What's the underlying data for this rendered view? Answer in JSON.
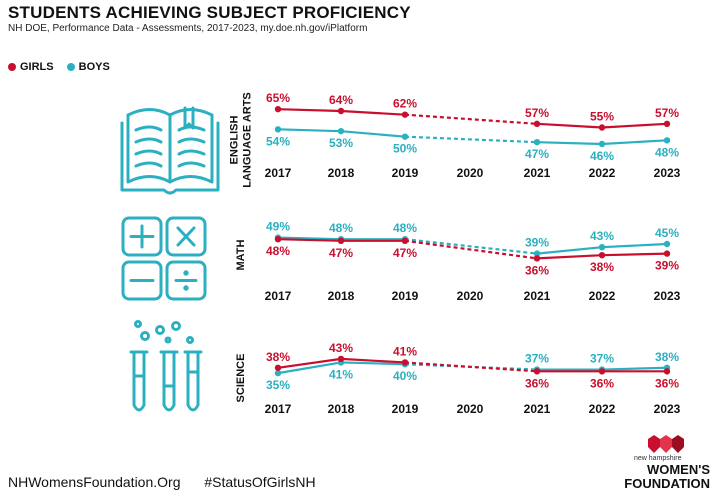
{
  "header": {
    "title": "STUDENTS ACHIEVING SUBJECT PROFICIENCY",
    "subtitle": "NH DOE, Performance Data - Assessments, 2017-2023, my.doe.nh.gov/iPlatform"
  },
  "colors": {
    "girls": "#c8102e",
    "boys": "#2bb0c1",
    "text": "#111111",
    "icon": "#2bb0c1"
  },
  "legend": {
    "girls": "GIRLS",
    "boys": "BOYS"
  },
  "footer": {
    "site": "NHWomensFoundation.Org",
    "hashtag": "#StatusOfGirlsNH"
  },
  "logo": {
    "small_text": "new hampshire",
    "line1": "WOMEN'S",
    "line2": "FOUNDATION"
  },
  "chart_data": [
    {
      "type": "line",
      "title": "ENGLISH LANGUAGE ARTS",
      "ylabel_lines": [
        "ENGLISH",
        "LANGUAGE ARTS"
      ],
      "icon": "open-book-icon",
      "categories": [
        "2017",
        "2018",
        "2019",
        "2020",
        "2021",
        "2022",
        "2023"
      ],
      "ylim": [
        40,
        70
      ],
      "series": [
        {
          "name": "GIRLS",
          "values": [
            65,
            64,
            62,
            null,
            57,
            55,
            57
          ],
          "labels": [
            "65%",
            "64%",
            "62%",
            "",
            "57%",
            "55%",
            "57%"
          ]
        },
        {
          "name": "BOYS",
          "values": [
            54,
            53,
            50,
            null,
            47,
            46,
            48
          ],
          "labels": [
            "54%",
            "53%",
            "50%",
            "",
            "47%",
            "46%",
            "48%"
          ]
        }
      ],
      "note": "2019 to 2021 dashed (no 2020 data)"
    },
    {
      "type": "line",
      "title": "MATH",
      "ylabel_lines": [
        "MATH"
      ],
      "icon": "calculator-symbols-icon",
      "categories": [
        "2017",
        "2018",
        "2019",
        "2020",
        "2021",
        "2022",
        "2023"
      ],
      "ylim": [
        30,
        55
      ],
      "series": [
        {
          "name": "GIRLS",
          "values": [
            48,
            47,
            47,
            null,
            36,
            38,
            39
          ],
          "labels": [
            "48%",
            "47%",
            "47%",
            "",
            "36%",
            "38%",
            "39%"
          ]
        },
        {
          "name": "BOYS",
          "values": [
            49,
            48,
            48,
            null,
            39,
            43,
            45
          ],
          "labels": [
            "49%",
            "48%",
            "48%",
            "",
            "39%",
            "43%",
            "45%"
          ]
        }
      ],
      "note": "2019 to 2021 dashed (no 2020 data)"
    },
    {
      "type": "line",
      "title": "SCIENCE",
      "ylabel_lines": [
        "SCIENCE"
      ],
      "icon": "test-tubes-icon",
      "categories": [
        "2017",
        "2018",
        "2019",
        "2020",
        "2021",
        "2022",
        "2023"
      ],
      "ylim": [
        30,
        48
      ],
      "series": [
        {
          "name": "GIRLS",
          "values": [
            38,
            43,
            41,
            null,
            36,
            36,
            36
          ],
          "labels": [
            "38%",
            "43%",
            "41%",
            "",
            "36%",
            "36%",
            "36%"
          ]
        },
        {
          "name": "BOYS",
          "values": [
            35,
            41,
            40,
            null,
            37,
            37,
            38
          ],
          "labels": [
            "35%",
            "41%",
            "40%",
            "",
            "37%",
            "37%",
            "38%"
          ]
        }
      ],
      "note": "2019 to 2021 dashed (no 2020 data)"
    }
  ]
}
